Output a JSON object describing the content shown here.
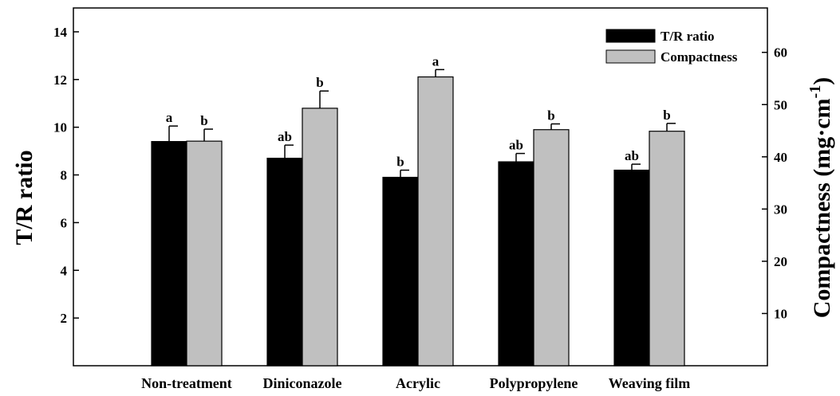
{
  "chart_data": {
    "type": "bar",
    "categories": [
      "Non-treatment",
      "Diniconazole",
      "Acrylic",
      "Polypropylene",
      "Weaving film"
    ],
    "series": [
      {
        "name": "T/R ratio",
        "axis": "left",
        "color": "#000000",
        "values": [
          9.4,
          8.7,
          7.9,
          8.55,
          8.2
        ],
        "errors": [
          0.65,
          0.55,
          0.3,
          0.35,
          0.25
        ],
        "labels": [
          "a",
          "ab",
          "b",
          "ab",
          "ab"
        ]
      },
      {
        "name": "Compactness",
        "axis": "right",
        "color": "#c0c0c0",
        "values": [
          43.0,
          49.3,
          55.3,
          45.2,
          44.9
        ],
        "errors": [
          2.3,
          3.3,
          1.4,
          1.1,
          1.5
        ],
        "labels": [
          "b",
          "b",
          "a",
          "b",
          "b"
        ]
      }
    ],
    "ylabel_left": "T/R ratio",
    "ylabel_right_main": "Compactness (mg·cm",
    "ylabel_right_sup": "-1",
    "ylabel_right_close": ")",
    "ylim_left": [
      0,
      15
    ],
    "ylim_right": [
      0,
      68.5
    ],
    "yticks_left": [
      2,
      4,
      6,
      8,
      10,
      12,
      14
    ],
    "yticks_right": [
      10,
      20,
      30,
      40,
      50,
      60
    ],
    "legend_position": "top-right",
    "grid": false
  }
}
